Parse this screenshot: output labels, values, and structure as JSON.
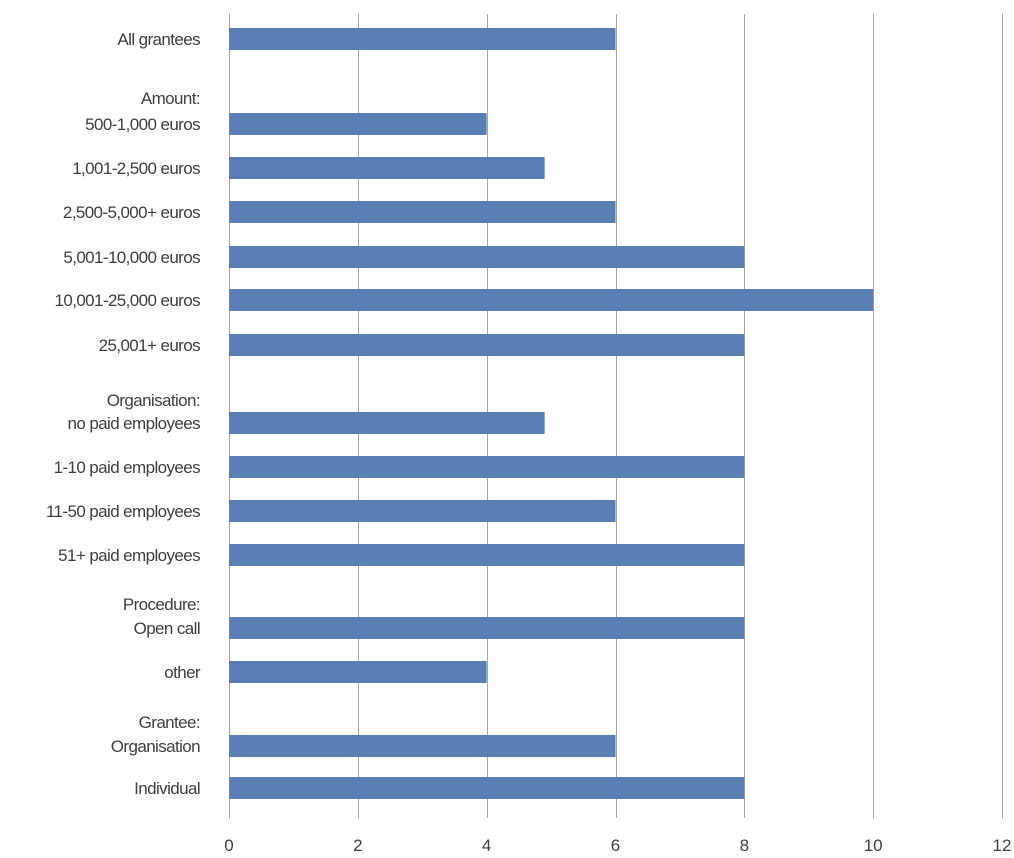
{
  "chart_data": {
    "type": "bar",
    "orientation": "horizontal",
    "categories": [
      "All grantees",
      "500-1,000 euros",
      "1,001-2,500 euros",
      "2,500-5,000+ euros",
      "5,001-10,000 euros",
      "10,001-25,000 euros",
      "25,001+ euros",
      "no paid employees",
      "1-10 paid employees",
      "11-50 paid employees",
      "51+ paid employees",
      "Open call",
      "other",
      "Organisation",
      "Individual"
    ],
    "values": [
      6,
      4,
      4.9,
      6,
      8,
      10,
      8,
      4.9,
      8,
      6,
      8,
      8,
      4,
      6,
      8
    ],
    "group_headers": [
      "Amount:",
      "Organisation:",
      "Procedure:",
      "Grantee:"
    ],
    "xlim": [
      0,
      12
    ],
    "xticks": [
      "0",
      "2",
      "4",
      "6",
      "8",
      "10",
      "12"
    ],
    "grid": true,
    "bar_color": "#5a7fb5",
    "grid_color": "#a6a6a6"
  }
}
